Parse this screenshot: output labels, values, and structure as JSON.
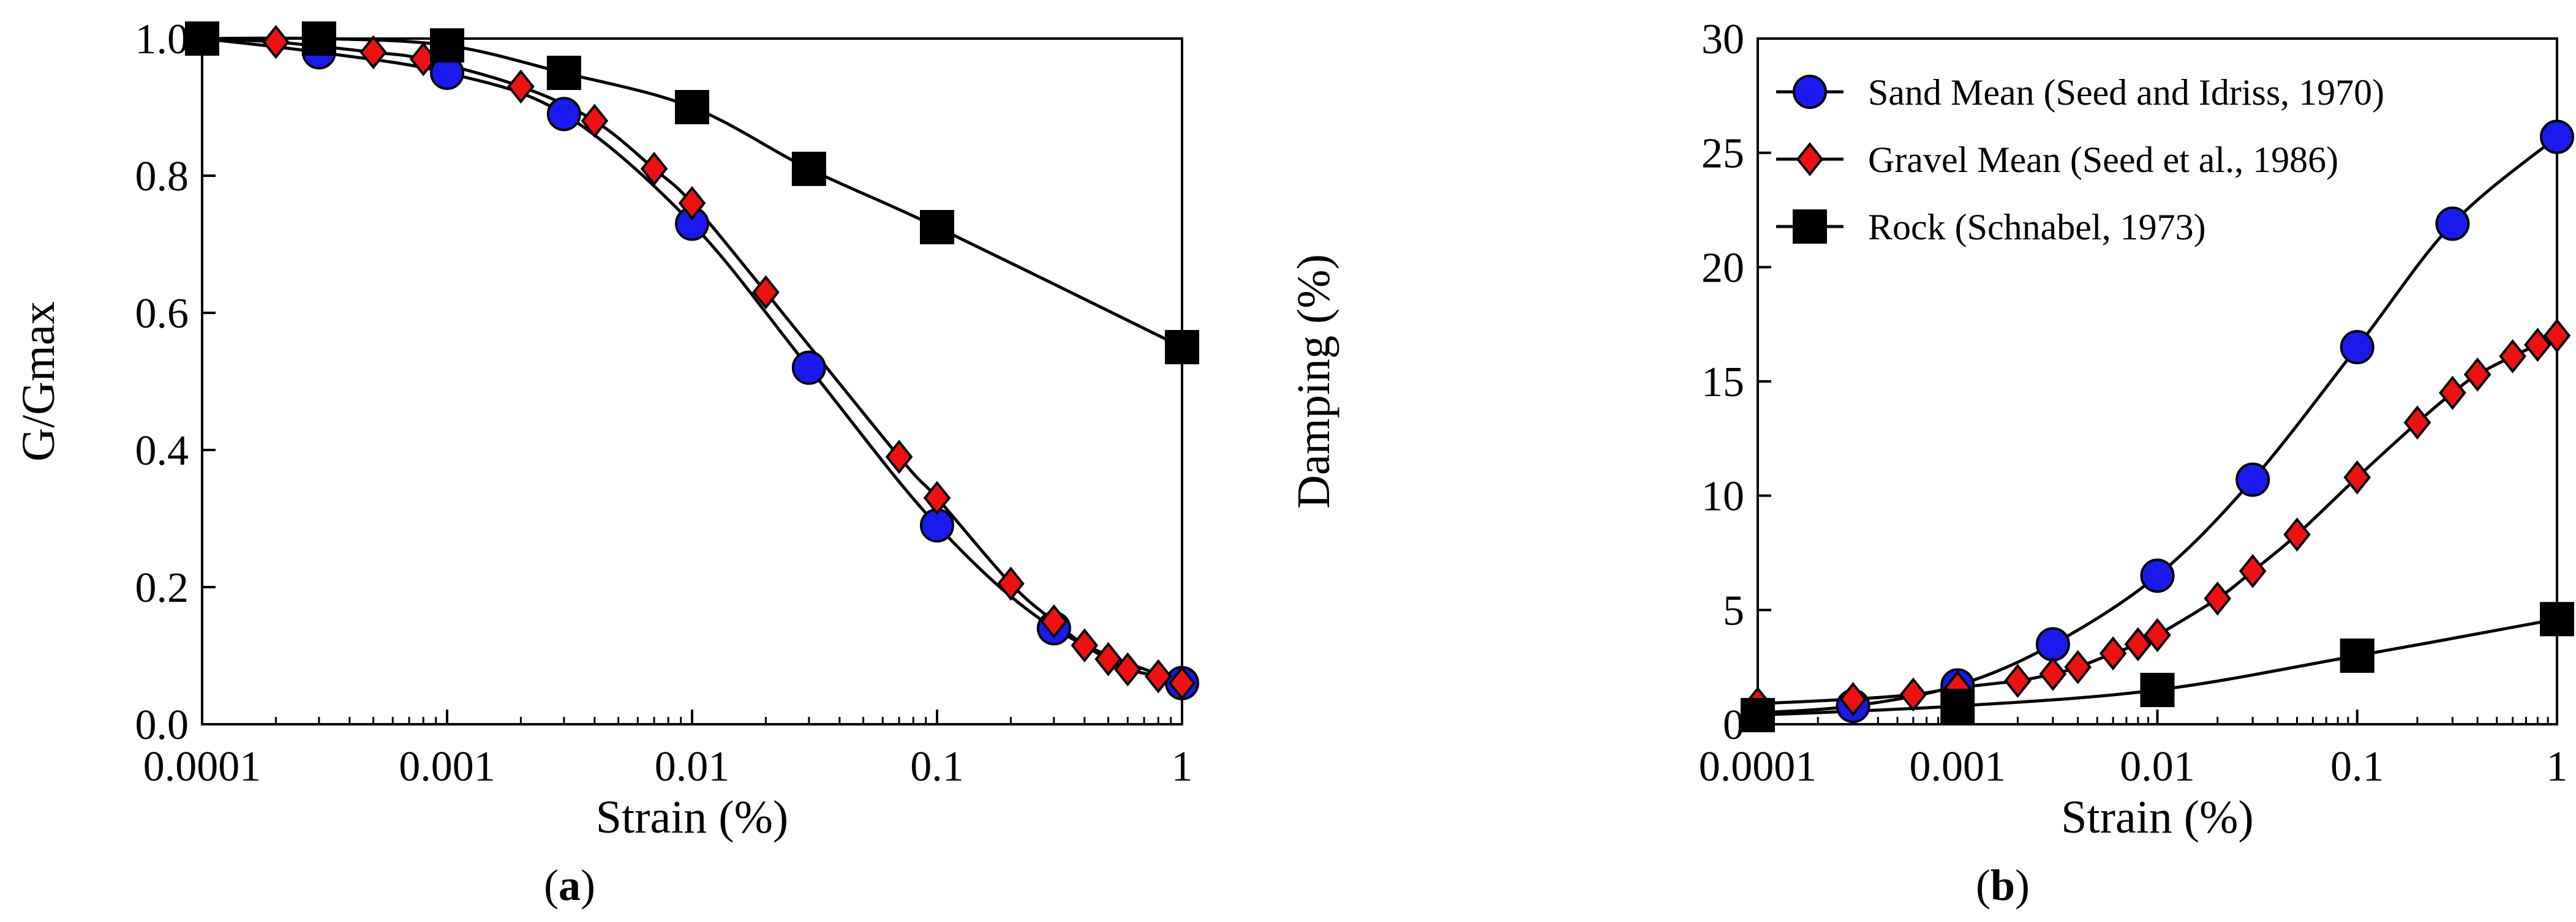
{
  "colors": {
    "sand_fill": "#1a1aef",
    "gravel_fill": "#ee1111",
    "rock_fill": "#000000",
    "line": "#000000"
  },
  "chart_data": [
    {
      "type": "line",
      "panel_label": "a",
      "xlabel": "Strain (%)",
      "ylabel": "G/Gmax",
      "xscale": "log",
      "xlim": [
        0.0001,
        1
      ],
      "ylim": [
        0.0,
        1.0
      ],
      "x_ticks": [
        0.0001,
        0.001,
        0.01,
        0.1,
        1
      ],
      "x_tick_labels": [
        "0.0001",
        "0.001",
        "0.01",
        "0.1",
        "1"
      ],
      "y_ticks": [
        0.0,
        0.2,
        0.4,
        0.6,
        0.8,
        1.0
      ],
      "y_tick_labels": [
        "0.0",
        "0.2",
        "0.4",
        "0.6",
        "0.8",
        "1.0"
      ],
      "grid": false,
      "series": [
        {
          "name": "Sand Mean (Seed and Idriss, 1970)",
          "marker": "circle",
          "color": "#1a1aef",
          "x": [
            0.0001,
            0.0003,
            0.001,
            0.003,
            0.01,
            0.03,
            0.1,
            0.3,
            1
          ],
          "y": [
            1.0,
            0.98,
            0.95,
            0.89,
            0.73,
            0.52,
            0.29,
            0.14,
            0.06
          ]
        },
        {
          "name": "Gravel Mean (Seed et al., 1986)",
          "marker": "diamond",
          "color": "#ee1111",
          "x": [
            0.0001,
            0.0002,
            0.0005,
            0.0008,
            0.002,
            0.004,
            0.007,
            0.01,
            0.02,
            0.07,
            0.1,
            0.2,
            0.3,
            0.4,
            0.5,
            0.6,
            0.8,
            1
          ],
          "y": [
            1.0,
            0.995,
            0.98,
            0.97,
            0.93,
            0.88,
            0.81,
            0.76,
            0.63,
            0.39,
            0.33,
            0.205,
            0.15,
            0.115,
            0.095,
            0.08,
            0.07,
            0.06
          ]
        },
        {
          "name": "Rock (Schnabel, 1973)",
          "marker": "square",
          "color": "#000000",
          "x": [
            0.0001,
            0.0003,
            0.001,
            0.003,
            0.01,
            0.03,
            0.1,
            1
          ],
          "y": [
            1.0,
            1.0,
            0.99,
            0.95,
            0.9,
            0.81,
            0.725,
            0.55
          ]
        }
      ]
    },
    {
      "type": "line",
      "panel_label": "b",
      "xlabel": "Strain (%)",
      "ylabel": "Damping (%)",
      "xscale": "log",
      "xlim": [
        0.0001,
        1
      ],
      "ylim": [
        0,
        30
      ],
      "x_ticks": [
        0.0001,
        0.001,
        0.01,
        0.1,
        1
      ],
      "x_tick_labels": [
        "0.0001",
        "0.001",
        "0.01",
        "0.1",
        "1"
      ],
      "y_ticks": [
        0,
        5,
        10,
        15,
        20,
        25,
        30
      ],
      "y_tick_labels": [
        "0",
        "5",
        "10",
        "15",
        "20",
        "25",
        "30"
      ],
      "grid": false,
      "legend_position": "top-left",
      "series": [
        {
          "name": "Sand Mean (Seed and Idriss, 1970)",
          "marker": "circle",
          "color": "#1a1aef",
          "x": [
            0.0001,
            0.0003,
            0.001,
            0.003,
            0.01,
            0.03,
            0.1,
            0.3,
            1
          ],
          "y": [
            0.5,
            0.8,
            1.7,
            3.5,
            6.5,
            10.7,
            16.5,
            21.9,
            25.7
          ]
        },
        {
          "name": "Gravel Mean (Seed et al., 1986)",
          "marker": "diamond",
          "color": "#ee1111",
          "x": [
            0.0001,
            0.0003,
            0.0006,
            0.001,
            0.002,
            0.003,
            0.004,
            0.006,
            0.008,
            0.01,
            0.02,
            0.03,
            0.05,
            0.1,
            0.2,
            0.3,
            0.4,
            0.6,
            0.8,
            1
          ],
          "y": [
            0.9,
            1.1,
            1.3,
            1.6,
            1.9,
            2.2,
            2.5,
            3.1,
            3.5,
            3.9,
            5.5,
            6.7,
            8.3,
            10.8,
            13.2,
            14.5,
            15.3,
            16.1,
            16.6,
            17.0
          ]
        },
        {
          "name": "Rock (Schnabel, 1973)",
          "marker": "square",
          "color": "#000000",
          "x": [
            0.0001,
            0.001,
            0.01,
            0.1,
            1
          ],
          "y": [
            0.4,
            0.8,
            1.5,
            3.0,
            4.6
          ]
        }
      ]
    }
  ]
}
